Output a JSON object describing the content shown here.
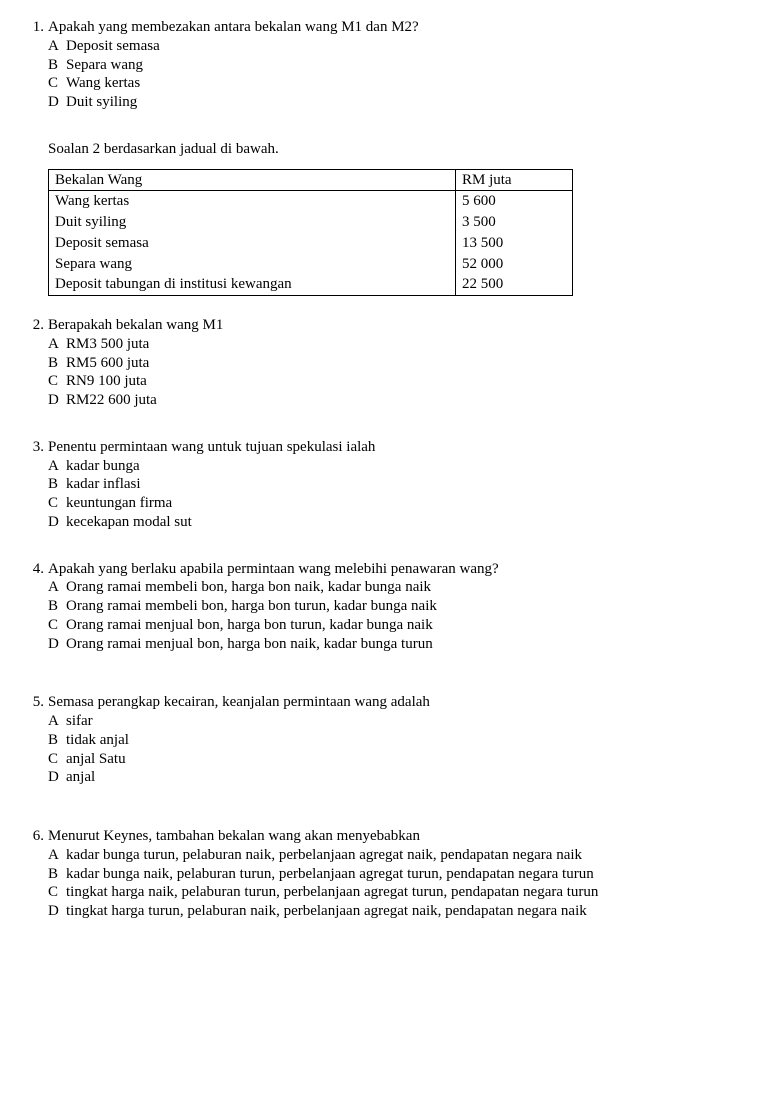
{
  "q1": {
    "num": "1.",
    "text": "Apakah yang membezakan antara bekalan wang M1 dan M2?",
    "opts": {
      "A": "Deposit semasa",
      "B": "Separa wang",
      "C": "Wang kertas",
      "D": "Duit syiling"
    }
  },
  "intro2": "Soalan 2 berdasarkan jadual di bawah.",
  "table": {
    "headers": {
      "c1": "Bekalan Wang",
      "c2": "RM juta"
    },
    "rows": [
      {
        "c1": "Wang kertas",
        "c2": "5 600"
      },
      {
        "c1": "Duit syiling",
        "c2": "3 500"
      },
      {
        "c1": "Deposit semasa",
        "c2": "13 500"
      },
      {
        "c1": "Separa wang",
        "c2": "52 000"
      },
      {
        "c1": "Deposit tabungan di institusi kewangan",
        "c2": "22 500"
      }
    ]
  },
  "q2": {
    "num": "2.",
    "text": "Berapakah bekalan wang M1",
    "opts": {
      "A": "RM3 500 juta",
      "B": "RM5 600 juta",
      "C": "RN9 100 juta",
      "D": "RM22 600 juta"
    }
  },
  "q3": {
    "num": "3.",
    "text": "Penentu permintaan wang untuk tujuan spekulasi ialah",
    "opts": {
      "A": "kadar bunga",
      "B": "kadar inflasi",
      "C": "keuntungan firma",
      "D": "kecekapan modal sut"
    }
  },
  "q4": {
    "num": "4.",
    "text": "Apakah yang berlaku apabila permintaan wang melebihi penawaran wang?",
    "opts": {
      "A": "Orang ramai membeli bon, harga bon naik, kadar bunga naik",
      "B": "Orang ramai membeli bon, harga bon turun, kadar bunga naik",
      "C": "Orang ramai menjual bon, harga bon turun, kadar bunga naik",
      "D": "Orang ramai menjual bon, harga bon naik, kadar bunga turun"
    }
  },
  "q5": {
    "num": "5.",
    "text": "Semasa perangkap kecairan, keanjalan permintaan wang adalah",
    "opts": {
      "A": "sifar",
      "B": "tidak anjal",
      "C": "anjal Satu",
      "D": "anjal"
    }
  },
  "q6": {
    "num": "6.",
    "text": "Menurut Keynes, tambahan bekalan wang akan menyebabkan",
    "opts": {
      "A": "kadar bunga turun, pelaburan naik, perbelanjaan agregat naik, pendapatan negara naik",
      "B": "kadar bunga naik, pelaburan turun, perbelanjaan agregat turun, pendapatan negara turun",
      "C": "tingkat harga naik, pelaburan turun, perbelanjaan agregat turun, pendapatan negara turun",
      "D": "tingkat harga turun, pelaburan naik, perbelanjaan agregat naik, pendapatan negara naik"
    }
  },
  "letters": {
    "A": "A",
    "B": "B",
    "C": "C",
    "D": "D"
  }
}
